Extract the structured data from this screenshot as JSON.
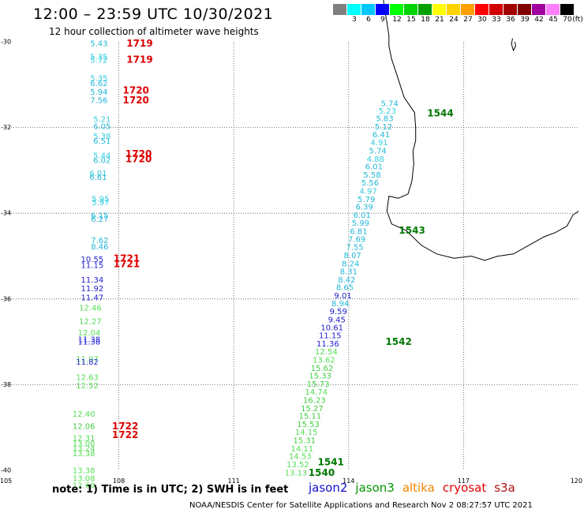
{
  "header": {
    "title": "12:00 – 23:59 UTC 10/30/2021",
    "subtitle": "12 hour collection of altimeter wave heights"
  },
  "legend": {
    "unit_label": "(ft)",
    "bins": [
      {
        "label": "",
        "color": "#808080"
      },
      {
        "label": "3",
        "color": "#00ffff"
      },
      {
        "label": "6",
        "color": "#00c8ff"
      },
      {
        "label": "9",
        "color": "#0000ff"
      },
      {
        "label": "12",
        "color": "#00ff00"
      },
      {
        "label": "15",
        "color": "#00d200"
      },
      {
        "label": "18",
        "color": "#00a000"
      },
      {
        "label": "21",
        "color": "#ffff00"
      },
      {
        "label": "24",
        "color": "#ffd200"
      },
      {
        "label": "27",
        "color": "#ffa000"
      },
      {
        "label": "30",
        "color": "#ff0000"
      },
      {
        "label": "33",
        "color": "#d20000"
      },
      {
        "label": "36",
        "color": "#a00000"
      },
      {
        "label": "39",
        "color": "#800000"
      },
      {
        "label": "42",
        "color": "#a000a0"
      },
      {
        "label": "45",
        "color": "#ff80ff"
      },
      {
        "label": "70",
        "color": "#000000"
      }
    ]
  },
  "axes": {
    "lon_ticks": [
      "105",
      "108",
      "111",
      "114",
      "117",
      "120"
    ],
    "lat_ticks": [
      "-30",
      "-32",
      "-34",
      "-36",
      "-38",
      "-40"
    ]
  },
  "colors": {
    "swh_10_12": "#2020d0",
    "swh_12_14": "#55dd55",
    "swh_14_16": "#44cc44",
    "swh_5_8": "#22b8d8",
    "swh_5_8_alt": "#33ccdd",
    "time_cryosat": "#dd0000",
    "time_jason3": "#007700"
  },
  "observations": [
    {
      "lon": 107.71,
      "lat": -30.05,
      "swh": "5.43",
      "color": "#22b8d8"
    },
    {
      "lon": 107.71,
      "lat": -30.36,
      "swh": "5.35",
      "color": "#33ccdd"
    },
    {
      "lon": 107.71,
      "lat": -30.43,
      "swh": "5.72",
      "color": "#33ccdd"
    },
    {
      "lon": 107.71,
      "lat": -30.86,
      "swh": "5.35",
      "color": "#33ccdd"
    },
    {
      "lon": 107.71,
      "lat": -30.98,
      "swh": "6.62",
      "color": "#22b8d8"
    },
    {
      "lon": 107.71,
      "lat": -31.18,
      "swh": "5.94",
      "color": "#22b8d8"
    },
    {
      "lon": 107.71,
      "lat": -31.37,
      "swh": "7.56",
      "color": "#22b8d8"
    },
    {
      "lon": 107.79,
      "lat": -31.81,
      "swh": "5.21",
      "color": "#33ccdd"
    },
    {
      "lon": 107.79,
      "lat": -31.98,
      "swh": "6.05",
      "color": "#22b8d8"
    },
    {
      "lon": 107.79,
      "lat": -32.21,
      "swh": "5.38",
      "color": "#33ccdd"
    },
    {
      "lon": 107.79,
      "lat": -32.32,
      "swh": "6.51",
      "color": "#22b8d8"
    },
    {
      "lon": 107.79,
      "lat": -32.66,
      "swh": "5.44",
      "color": "#33ccdd"
    },
    {
      "lon": 107.79,
      "lat": -32.77,
      "swh": "6.02",
      "color": "#22b8d8"
    },
    {
      "lon": 107.69,
      "lat": -33.08,
      "swh": "6.01",
      "color": "#33ccdd"
    },
    {
      "lon": 107.69,
      "lat": -33.17,
      "swh": "6.61",
      "color": "#22b8d8"
    },
    {
      "lon": 107.75,
      "lat": -33.67,
      "swh": "5.95",
      "color": "#33ccdd"
    },
    {
      "lon": 107.75,
      "lat": -33.76,
      "swh": "5.97",
      "color": "#33ccdd"
    },
    {
      "lon": 107.73,
      "lat": -34.06,
      "swh": "6.15",
      "color": "#22b8d8"
    },
    {
      "lon": 107.73,
      "lat": -34.14,
      "swh": "6.27",
      "color": "#22b8d8"
    },
    {
      "lon": 107.73,
      "lat": -34.64,
      "swh": "7.62",
      "color": "#22b8d8"
    },
    {
      "lon": 107.73,
      "lat": -34.79,
      "swh": "8.46",
      "color": "#22b8d8"
    },
    {
      "lon": 107.6,
      "lat": -35.08,
      "swh": "10.55",
      "color": "#2020d0"
    },
    {
      "lon": 107.6,
      "lat": -35.22,
      "swh": "11.15",
      "color": "#2020d0"
    },
    {
      "lon": 107.6,
      "lat": -35.56,
      "swh": "11.34",
      "color": "#2020d0"
    },
    {
      "lon": 107.6,
      "lat": -35.76,
      "swh": "11.92",
      "color": "#2020d0"
    },
    {
      "lon": 107.6,
      "lat": -35.98,
      "swh": "11.47",
      "color": "#2020d0"
    },
    {
      "lon": 107.55,
      "lat": -36.22,
      "swh": "12.46",
      "color": "#55dd55"
    },
    {
      "lon": 107.55,
      "lat": -36.53,
      "swh": "12.27",
      "color": "#55dd55"
    },
    {
      "lon": 107.52,
      "lat": -36.8,
      "swh": "12.04",
      "color": "#55dd55"
    },
    {
      "lon": 107.52,
      "lat": -36.95,
      "swh": "11.38",
      "color": "#2020d0"
    },
    {
      "lon": 107.52,
      "lat": -37.01,
      "swh": "11.38",
      "color": "#2020d0"
    },
    {
      "lon": 107.47,
      "lat": -37.41,
      "swh": "11.97",
      "color": "#55dd55"
    },
    {
      "lon": 107.47,
      "lat": -37.48,
      "swh": "11.82",
      "color": "#2020d0"
    },
    {
      "lon": 107.47,
      "lat": -37.84,
      "swh": "12.63",
      "color": "#55dd55"
    },
    {
      "lon": 107.47,
      "lat": -38.03,
      "swh": "12.52",
      "color": "#55dd55"
    },
    {
      "lon": 107.38,
      "lat": -38.69,
      "swh": "12.40",
      "color": "#55dd55"
    },
    {
      "lon": 107.38,
      "lat": -38.98,
      "swh": "12.06",
      "color": "#44cc44"
    },
    {
      "lon": 107.38,
      "lat": -39.25,
      "swh": "12.31",
      "color": "#55dd55"
    },
    {
      "lon": 107.38,
      "lat": -39.38,
      "swh": "13.00",
      "color": "#55dd55"
    },
    {
      "lon": 107.38,
      "lat": -39.49,
      "swh": "13.24",
      "color": "#55dd55"
    },
    {
      "lon": 107.38,
      "lat": -39.61,
      "swh": "13.38",
      "color": "#55dd55"
    },
    {
      "lon": 107.38,
      "lat": -40.01,
      "swh": "13.38",
      "color": "#55dd55"
    },
    {
      "lon": 107.38,
      "lat": -40.19,
      "swh": "13.08",
      "color": "#55dd55"
    },
    {
      "lon": 107.38,
      "lat": -40.36,
      "swh": "12.60",
      "color": "#55dd55"
    },
    {
      "lon": 115.3,
      "lat": -31.45,
      "swh": "5.74",
      "color": "#22b8d8"
    },
    {
      "lon": 115.24,
      "lat": -31.62,
      "swh": "5.23",
      "color": "#33ccdd"
    },
    {
      "lon": 115.17,
      "lat": -31.8,
      "swh": "5.83",
      "color": "#22b8d8"
    },
    {
      "lon": 115.14,
      "lat": -31.99,
      "swh": "5.12",
      "color": "#22b8d8"
    },
    {
      "lon": 115.08,
      "lat": -32.17,
      "swh": "6.41",
      "color": "#22b8d8"
    },
    {
      "lon": 115.03,
      "lat": -32.36,
      "swh": "4.91",
      "color": "#33ccdd"
    },
    {
      "lon": 114.99,
      "lat": -32.55,
      "swh": "5.74",
      "color": "#22b8d8"
    },
    {
      "lon": 114.93,
      "lat": -32.74,
      "swh": "4.88",
      "color": "#33ccdd"
    },
    {
      "lon": 114.89,
      "lat": -32.92,
      "swh": "6.01",
      "color": "#22b8d8"
    },
    {
      "lon": 114.84,
      "lat": -33.11,
      "swh": "5.58",
      "color": "#22b8d8"
    },
    {
      "lon": 114.79,
      "lat": -33.3,
      "swh": "5.56",
      "color": "#22b8d8"
    },
    {
      "lon": 114.74,
      "lat": -33.49,
      "swh": "4.97",
      "color": "#33ccdd"
    },
    {
      "lon": 114.69,
      "lat": -33.68,
      "swh": "5.79",
      "color": "#22b8d8"
    },
    {
      "lon": 114.64,
      "lat": -33.86,
      "swh": "6.39",
      "color": "#22b8d8"
    },
    {
      "lon": 114.58,
      "lat": -34.05,
      "swh": "6.01",
      "color": "#22b8d8"
    },
    {
      "lon": 114.54,
      "lat": -34.24,
      "swh": "5.99",
      "color": "#22b8d8"
    },
    {
      "lon": 114.49,
      "lat": -34.43,
      "swh": "6.81",
      "color": "#22b8d8"
    },
    {
      "lon": 114.44,
      "lat": -34.61,
      "swh": "7.69",
      "color": "#22b8d8"
    },
    {
      "lon": 114.39,
      "lat": -34.8,
      "swh": "7.55",
      "color": "#22b8d8"
    },
    {
      "lon": 114.33,
      "lat": -34.99,
      "swh": "8.07",
      "color": "#22b8d8"
    },
    {
      "lon": 114.28,
      "lat": -35.18,
      "swh": "8.24",
      "color": "#22b8d8"
    },
    {
      "lon": 114.23,
      "lat": -35.37,
      "swh": "8.31",
      "color": "#22b8d8"
    },
    {
      "lon": 114.18,
      "lat": -35.56,
      "swh": "8.42",
      "color": "#22b8d8"
    },
    {
      "lon": 114.13,
      "lat": -35.74,
      "swh": "8.65",
      "color": "#22b8d8"
    },
    {
      "lon": 114.08,
      "lat": -35.93,
      "swh": "9.01",
      "color": "#2020d0"
    },
    {
      "lon": 114.01,
      "lat": -36.11,
      "swh": "8.94",
      "color": "#22b8d8"
    },
    {
      "lon": 113.96,
      "lat": -36.3,
      "swh": "9.59",
      "color": "#2020d0"
    },
    {
      "lon": 113.92,
      "lat": -36.49,
      "swh": "9.45",
      "color": "#2020d0"
    },
    {
      "lon": 113.86,
      "lat": -36.68,
      "swh": "10.61",
      "color": "#2020d0"
    },
    {
      "lon": 113.81,
      "lat": -36.86,
      "swh": "11.15",
      "color": "#2020d0"
    },
    {
      "lon": 113.75,
      "lat": -37.05,
      "swh": "11.36",
      "color": "#2020d0"
    },
    {
      "lon": 113.71,
      "lat": -37.24,
      "swh": "12.54",
      "color": "#55dd55"
    },
    {
      "lon": 113.65,
      "lat": -37.43,
      "swh": "13.62",
      "color": "#55dd55"
    },
    {
      "lon": 113.6,
      "lat": -37.62,
      "swh": "15.62",
      "color": "#44cc44"
    },
    {
      "lon": 113.55,
      "lat": -37.8,
      "swh": "15.33",
      "color": "#44cc44"
    },
    {
      "lon": 113.5,
      "lat": -37.99,
      "swh": "15.73",
      "color": "#44cc44"
    },
    {
      "lon": 113.45,
      "lat": -38.18,
      "swh": "14.74",
      "color": "#55dd55"
    },
    {
      "lon": 113.4,
      "lat": -38.37,
      "swh": "16.23",
      "color": "#44cc44"
    },
    {
      "lon": 113.34,
      "lat": -38.56,
      "swh": "15.27",
      "color": "#44cc44"
    },
    {
      "lon": 113.29,
      "lat": -38.74,
      "swh": "15.11",
      "color": "#44cc44"
    },
    {
      "lon": 113.24,
      "lat": -38.93,
      "swh": "15.53",
      "color": "#44cc44"
    },
    {
      "lon": 113.19,
      "lat": -39.12,
      "swh": "14.15",
      "color": "#55dd55"
    },
    {
      "lon": 113.14,
      "lat": -39.31,
      "swh": "15.31",
      "color": "#44cc44"
    },
    {
      "lon": 113.08,
      "lat": -39.5,
      "swh": "14.11",
      "color": "#55dd55"
    },
    {
      "lon": 113.03,
      "lat": -39.68,
      "swh": "14.53",
      "color": "#55dd55"
    },
    {
      "lon": 112.97,
      "lat": -39.87,
      "swh": "13.52",
      "color": "#55dd55"
    },
    {
      "lon": 112.92,
      "lat": -40.06,
      "swh": "13.13",
      "color": "#55dd55"
    }
  ],
  "time_labels": [
    {
      "lon": 108.2,
      "lat": -30.05,
      "text": "1719",
      "color": "#dd0000"
    },
    {
      "lon": 108.2,
      "lat": -30.42,
      "text": "1719",
      "color": "#dd0000"
    },
    {
      "lon": 108.1,
      "lat": -31.14,
      "text": "1720",
      "color": "#dd0000"
    },
    {
      "lon": 108.1,
      "lat": -31.37,
      "text": "1720",
      "color": "#dd0000"
    },
    {
      "lon": 108.17,
      "lat": -32.62,
      "text": "1720",
      "color": "#dd0000"
    },
    {
      "lon": 108.17,
      "lat": -32.74,
      "text": "1720",
      "color": "#dd0000"
    },
    {
      "lon": 107.86,
      "lat": -35.06,
      "text": "1721",
      "color": "#dd0000"
    },
    {
      "lon": 107.86,
      "lat": -35.19,
      "text": "1721",
      "color": "#dd0000"
    },
    {
      "lon": 107.82,
      "lat": -38.98,
      "text": "1722",
      "color": "#dd0000"
    },
    {
      "lon": 107.82,
      "lat": -39.18,
      "text": "1722",
      "color": "#dd0000"
    },
    {
      "lon": 116.05,
      "lat": -31.68,
      "text": "1544",
      "color": "#007700"
    },
    {
      "lon": 115.31,
      "lat": -34.41,
      "text": "1543",
      "color": "#007700"
    },
    {
      "lon": 114.96,
      "lat": -37.01,
      "text": "1542",
      "color": "#007700"
    },
    {
      "lon": 113.19,
      "lat": -39.82,
      "text": "1541",
      "color": "#007700"
    },
    {
      "lon": 112.95,
      "lat": -40.06,
      "text": "1540",
      "color": "#007700"
    }
  ],
  "coastline": [
    [
      114.9,
      -28.95
    ],
    [
      114.93,
      -29.2
    ],
    [
      115.0,
      -29.55
    ],
    [
      115.05,
      -29.85
    ],
    [
      115.05,
      -30.1
    ],
    [
      115.12,
      -30.4
    ],
    [
      115.25,
      -30.75
    ],
    [
      115.45,
      -31.3
    ],
    [
      115.72,
      -31.65
    ],
    [
      115.75,
      -32.0
    ],
    [
      115.75,
      -32.3
    ],
    [
      115.68,
      -32.55
    ],
    [
      115.7,
      -32.85
    ],
    [
      115.65,
      -33.25
    ],
    [
      115.55,
      -33.55
    ],
    [
      115.3,
      -33.65
    ],
    [
      115.05,
      -33.6
    ],
    [
      115.0,
      -33.95
    ],
    [
      115.12,
      -34.25
    ],
    [
      115.5,
      -34.4
    ],
    [
      115.9,
      -34.75
    ],
    [
      116.3,
      -34.95
    ],
    [
      116.75,
      -35.05
    ],
    [
      117.2,
      -35.0
    ],
    [
      117.55,
      -35.1
    ],
    [
      117.9,
      -35.0
    ],
    [
      118.3,
      -34.95
    ],
    [
      118.7,
      -34.75
    ],
    [
      119.1,
      -34.55
    ],
    [
      119.4,
      -34.45
    ],
    [
      119.7,
      -34.3
    ],
    [
      119.85,
      -34.05
    ],
    [
      120.0,
      -33.95
    ]
  ],
  "island": [
    [
      118.28,
      -29.92
    ],
    [
      118.25,
      -30.05
    ],
    [
      118.3,
      -30.2
    ],
    [
      118.36,
      -30.1
    ],
    [
      118.34,
      -30.0
    ]
  ],
  "notes": {
    "note_text": "note: 1) Time is in UTC; 2) SWH is in feet",
    "credit": "NOAA/NESDIS Center for Satellite Applications and Research    Nov  2 08:27:57 UTC 2021"
  },
  "missions": [
    {
      "name": "jason2",
      "color": "#1010cc"
    },
    {
      "name": "jason3",
      "color": "#009900"
    },
    {
      "name": "altika",
      "color": "#ee8800"
    },
    {
      "name": "cryosat",
      "color": "#dd0000"
    },
    {
      "name": "s3a",
      "color": "#aa1010"
    }
  ]
}
